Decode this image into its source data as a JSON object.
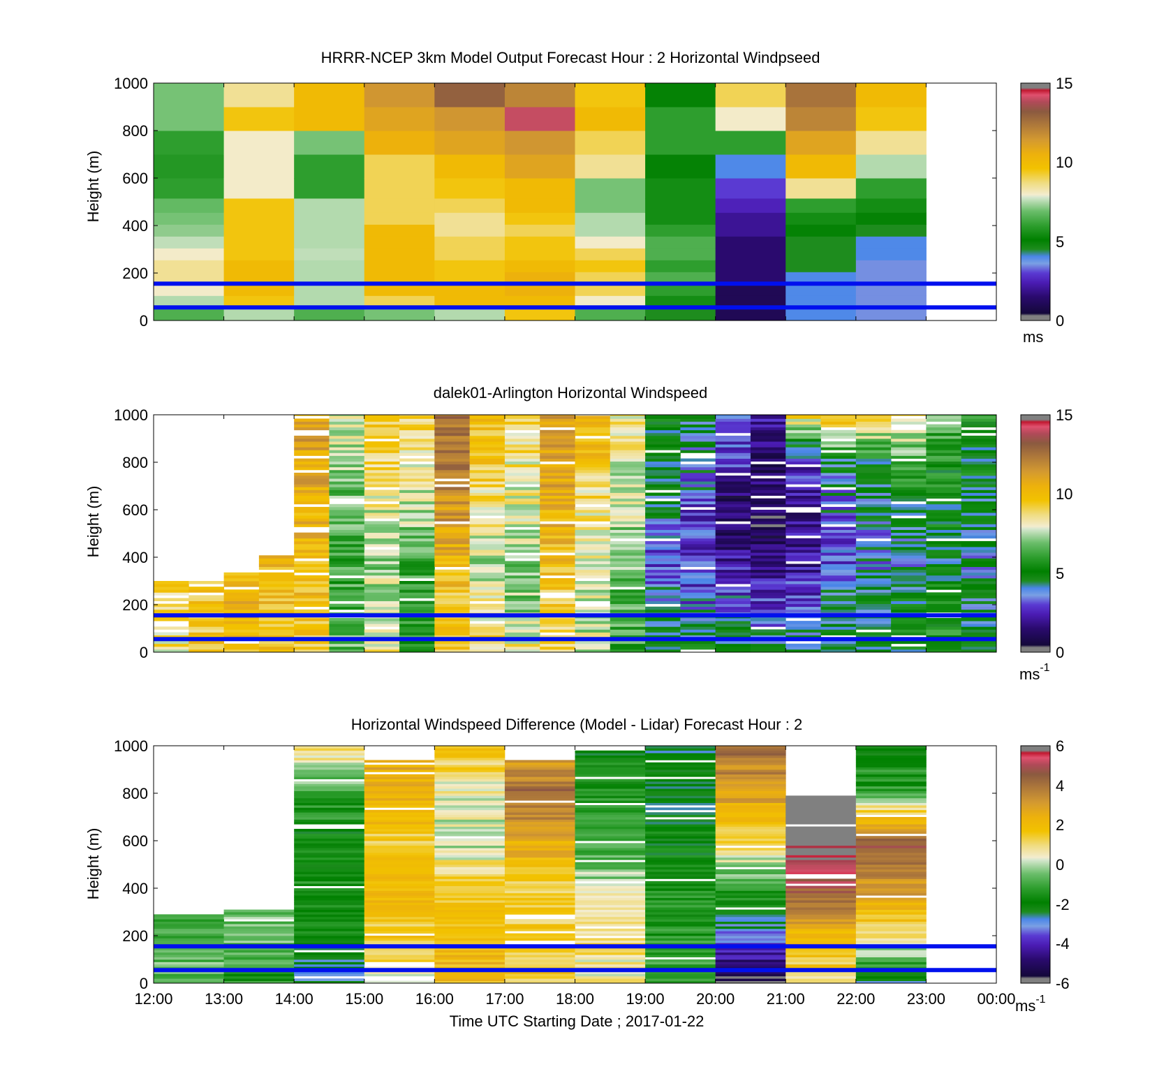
{
  "colors": {
    "windspeed_stops": [
      [
        0.0,
        "#808080"
      ],
      [
        0.02,
        "#808080"
      ],
      [
        0.03,
        "#14083a"
      ],
      [
        0.1,
        "#2a0a6e"
      ],
      [
        0.16,
        "#4b1cb4"
      ],
      [
        0.2,
        "#5a3ad2"
      ],
      [
        0.24,
        "#7aa0e4"
      ],
      [
        0.27,
        "#4a86e8"
      ],
      [
        0.3,
        "#1e8c1e"
      ],
      [
        0.34,
        "#008000"
      ],
      [
        0.4,
        "#2e9e2e"
      ],
      [
        0.46,
        "#6abd6a"
      ],
      [
        0.52,
        "#d8e8d0"
      ],
      [
        0.53,
        "#f3ecce"
      ],
      [
        0.58,
        "#f0dc80"
      ],
      [
        0.64,
        "#f2c200"
      ],
      [
        0.7,
        "#edb10c"
      ],
      [
        0.76,
        "#d49a30"
      ],
      [
        0.82,
        "#b07a3a"
      ],
      [
        0.88,
        "#8b5a40"
      ],
      [
        0.92,
        "#b04a58"
      ],
      [
        0.95,
        "#e0506e"
      ],
      [
        0.97,
        "#c01830"
      ],
      [
        0.98,
        "#808080"
      ],
      [
        1.0,
        "#808080"
      ]
    ],
    "overlay_line": "#0010ee"
  },
  "charts": [
    {
      "id": "model",
      "title": "HRRR-NCEP 3km Model Output   Forecast Hour : 2 Horizontal Windpseed",
      "ylabel": "Height (m)",
      "yticks": [
        "0",
        "200",
        "400",
        "600",
        "800",
        "1000"
      ],
      "xticks": [],
      "xlabel": "",
      "cbar_ticks": [
        "0",
        "5",
        "10",
        "15"
      ],
      "cbar_unit": "ms",
      "cbar_unit_sup": ""
    },
    {
      "id": "lidar",
      "title": "dalek01-Arlington  Horizontal Windspeed",
      "ylabel": "Height (m)",
      "yticks": [
        "0",
        "200",
        "400",
        "600",
        "800",
        "1000"
      ],
      "xticks": [],
      "xlabel": "",
      "cbar_ticks": [
        "0",
        "5",
        "10",
        "15"
      ],
      "cbar_unit": "ms",
      "cbar_unit_sup": "-1"
    },
    {
      "id": "difference",
      "title": "Horizontal Windspeed Difference (Model - Lidar) Forecast Hour : 2",
      "ylabel": "Height (m)",
      "yticks": [
        "0",
        "200",
        "400",
        "600",
        "800",
        "1000"
      ],
      "xticks": [
        "12:00",
        "13:00",
        "14:00",
        "15:00",
        "16:00",
        "17:00",
        "18:00",
        "19:00",
        "20:00",
        "21:00",
        "22:00",
        "23:00",
        "00:00"
      ],
      "xlabel": "Time UTC  Starting Date ; 2017-01-22",
      "cbar_ticks": [
        "-6",
        "-4",
        "-2",
        "0",
        "2",
        "4",
        "6"
      ],
      "cbar_unit": "ms",
      "cbar_unit_sup": "-1"
    }
  ],
  "chart_data": [
    {
      "type": "heatmap",
      "title": "HRRR-NCEP 3km Model Output   Forecast Hour : 2 Horizontal Windpseed",
      "ylabel": "Height (m)",
      "ylim": [
        0,
        1000
      ],
      "x_range": [
        "12:00",
        "00:00"
      ],
      "colorbar": {
        "range": [
          0,
          15
        ],
        "unit": "ms"
      },
      "reference_lines_height_m": [
        55,
        155
      ],
      "hours": [
        "12:00",
        "13:00",
        "14:00",
        "15:00",
        "16:00",
        "17:00",
        "18:00",
        "19:00",
        "20:00",
        "21:00",
        "22:00"
      ],
      "heights_m": [
        25,
        80,
        130,
        180,
        230,
        280,
        330,
        380,
        430,
        480,
        550,
        650,
        750,
        850,
        950
      ],
      "values": [
        [
          6.5,
          7.5,
          8.0,
          8.5,
          8.5,
          8.0,
          7.6,
          7.2,
          7.0,
          6.8,
          6.0,
          5.8,
          6.0,
          7.0,
          7.0
        ],
        [
          7.5,
          9.5,
          10.0,
          10.0,
          10.0,
          9.5,
          9.5,
          9.5,
          9.5,
          9.5,
          8.0,
          8.0,
          8.0,
          9.5,
          8.5
        ],
        [
          6.5,
          7.5,
          7.5,
          7.5,
          7.5,
          7.6,
          7.5,
          7.5,
          7.5,
          7.5,
          6.0,
          6.0,
          7.0,
          10.0,
          10.0
        ],
        [
          7.0,
          9.0,
          10.0,
          10.0,
          10.0,
          10.0,
          10.0,
          10.0,
          9.0,
          9.0,
          9.0,
          9.0,
          10.5,
          11.0,
          11.5
        ],
        [
          7.5,
          10.0,
          10.0,
          9.5,
          9.5,
          9.0,
          9.0,
          8.5,
          8.5,
          9.0,
          9.5,
          10.0,
          11.0,
          11.5,
          13.0
        ],
        [
          9.5,
          10.0,
          10.5,
          10.5,
          10.0,
          9.5,
          9.5,
          9.0,
          9.5,
          10.0,
          10.0,
          11.0,
          11.5,
          14.0,
          12.0
        ],
        [
          6.5,
          8.0,
          9.0,
          9.0,
          9.5,
          9.0,
          8.0,
          7.5,
          7.5,
          7.0,
          7.0,
          8.5,
          9.0,
          10.0,
          9.5
        ],
        [
          4.5,
          5.5,
          6.0,
          6.5,
          6.0,
          6.5,
          6.5,
          6.0,
          5.5,
          5.5,
          5.5,
          5.0,
          6.0,
          6.0,
          5.0
        ],
        [
          1.0,
          1.0,
          1.0,
          1.5,
          1.5,
          1.5,
          1.5,
          2.0,
          2.0,
          2.5,
          3.0,
          4.0,
          6.0,
          8.0,
          9.0
        ],
        [
          4.0,
          4.0,
          4.0,
          4.0,
          4.5,
          4.5,
          4.5,
          5.0,
          5.5,
          6.0,
          8.5,
          10.0,
          11.0,
          12.0,
          12.5
        ],
        [
          3.5,
          3.5,
          3.5,
          3.5,
          3.5,
          4.0,
          4.0,
          4.5,
          5.0,
          5.5,
          6.0,
          7.5,
          8.5,
          9.5,
          10.0
        ]
      ]
    },
    {
      "type": "heatmap",
      "title": "dalek01-Arlington  Horizontal Windspeed",
      "ylabel": "Height (m)",
      "ylim": [
        0,
        1000
      ],
      "x_range": [
        "12:00",
        "00:00"
      ],
      "colorbar": {
        "range": [
          0,
          15
        ],
        "unit": "ms-1"
      },
      "reference_lines_height_m": [
        55,
        155
      ],
      "half_hours": [
        "12:00",
        "12:30",
        "13:00",
        "13:30",
        "14:00",
        "14:30",
        "15:00",
        "15:30",
        "16:00",
        "16:30",
        "17:00",
        "17:30",
        "18:00",
        "18:30",
        "19:00",
        "19:30",
        "20:00",
        "20:30",
        "21:00",
        "21:30",
        "22:00",
        "22:30",
        "23:00",
        "23:30"
      ],
      "valid_top_m": [
        300,
        300,
        330,
        400,
        1000,
        1000,
        1000,
        1000,
        1000,
        1000,
        1000,
        1000,
        1000,
        1000,
        1000,
        1000,
        1000,
        1000,
        1000,
        1000,
        1000,
        1000,
        1000,
        1000
      ],
      "profile_knots_m": [
        0,
        200,
        400,
        600,
        800,
        1000
      ],
      "profile_values": [
        [
          8.5,
          9.0,
          9.0,
          null,
          null,
          null
        ],
        [
          9.5,
          9.5,
          9.5,
          null,
          null,
          null
        ],
        [
          10.0,
          10.5,
          10.0,
          null,
          null,
          null
        ],
        [
          9.5,
          10.0,
          10.0,
          null,
          null,
          null
        ],
        [
          9.5,
          10.0,
          10.0,
          10.5,
          11.0,
          11.0
        ],
        [
          6.5,
          6.5,
          6.0,
          6.5,
          7.5,
          8.0
        ],
        [
          8.5,
          8.0,
          7.0,
          8.0,
          9.0,
          9.5
        ],
        [
          6.0,
          5.5,
          6.5,
          7.5,
          8.5,
          9.0
        ],
        [
          9.5,
          9.5,
          10.5,
          11.5,
          12.5,
          12.5
        ],
        [
          9.0,
          8.0,
          7.5,
          8.5,
          9.5,
          10.0
        ],
        [
          8.5,
          7.0,
          7.0,
          8.0,
          8.5,
          9.0
        ],
        [
          9.0,
          9.5,
          10.0,
          10.5,
          11.0,
          11.5
        ],
        [
          7.5,
          8.0,
          8.0,
          8.5,
          9.5,
          10.5
        ],
        [
          6.0,
          6.5,
          7.0,
          7.5,
          8.0,
          8.5
        ],
        [
          5.0,
          4.0,
          3.0,
          4.0,
          5.0,
          5.0
        ],
        [
          5.0,
          3.5,
          2.5,
          3.0,
          4.0,
          4.5
        ],
        [
          5.0,
          3.5,
          2.0,
          1.0,
          2.5,
          4.0
        ],
        [
          4.5,
          3.0,
          1.5,
          1.0,
          1.5,
          2.0
        ],
        [
          4.5,
          3.0,
          2.0,
          2.0,
          2.5,
          9.0
        ],
        [
          4.5,
          4.0,
          3.0,
          3.5,
          4.5,
          10.5
        ],
        [
          4.5,
          4.5,
          3.5,
          4.0,
          5.0,
          9.5
        ],
        [
          5.0,
          5.0,
          4.0,
          4.5,
          6.0,
          9.0
        ],
        [
          5.5,
          5.5,
          4.5,
          5.0,
          5.5,
          6.5
        ],
        [
          5.0,
          4.5,
          4.0,
          4.5,
          5.0,
          5.5
        ]
      ]
    },
    {
      "type": "heatmap",
      "title": "Horizontal Windspeed Difference (Model - Lidar) Forecast Hour : 2",
      "ylabel": "Height (m)",
      "xlabel": "Time UTC  Starting Date ; 2017-01-22",
      "ylim": [
        0,
        1000
      ],
      "colorbar": {
        "range": [
          -6,
          6
        ],
        "unit": "ms-1"
      },
      "reference_lines_height_m": [
        55,
        155
      ],
      "hours": [
        "12:00",
        "13:00",
        "14:00",
        "15:00",
        "16:00",
        "17:00",
        "18:00",
        "19:00",
        "20:00",
        "21:00",
        "22:00"
      ],
      "valid_top_m": [
        290,
        310,
        1000,
        940,
        1000,
        940,
        1000,
        1000,
        1000,
        790,
        1000
      ],
      "profile_knots_m": [
        0,
        200,
        400,
        600,
        800,
        1000
      ],
      "profile_values": [
        [
          -0.5,
          -1.0,
          null,
          null,
          null,
          null
        ],
        [
          -1.5,
          -0.5,
          null,
          null,
          null,
          null
        ],
        [
          -2.5,
          -2.0,
          -1.5,
          -2.0,
          -1.0,
          1.0
        ],
        [
          0.5,
          1.5,
          2.0,
          1.5,
          2.5,
          2.5
        ],
        [
          2.0,
          2.0,
          1.5,
          0.0,
          0.5,
          1.5
        ],
        [
          1.5,
          1.5,
          1.5,
          2.5,
          4.5,
          2.0
        ],
        [
          0.5,
          1.0,
          0.0,
          -1.0,
          -1.5,
          -2.0
        ],
        [
          -1.0,
          -1.5,
          -1.5,
          -2.0,
          -2.0,
          -2.5
        ],
        [
          -6.0,
          -3.0,
          -1.0,
          1.0,
          3.0,
          4.0
        ],
        [
          1.0,
          2.0,
          4.5,
          6.5,
          6.5,
          null
        ],
        [
          -2.5,
          1.0,
          3.0,
          4.5,
          -1.0,
          -2.0
        ]
      ]
    }
  ]
}
